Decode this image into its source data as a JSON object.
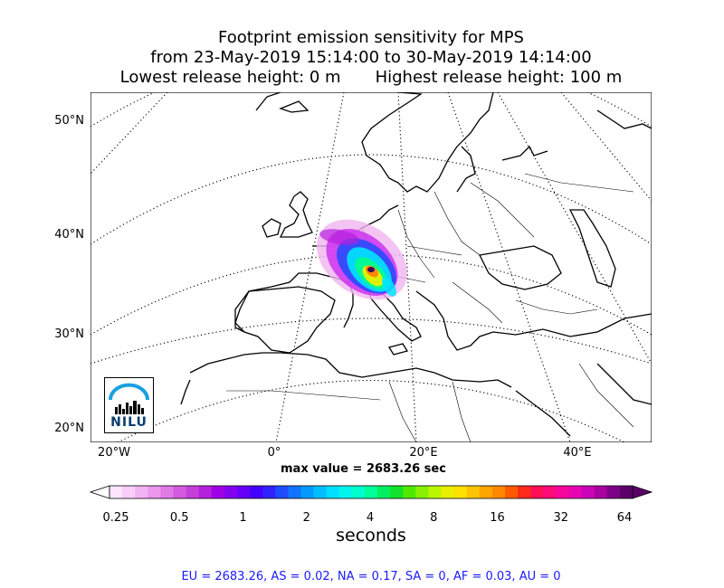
{
  "title": {
    "line1": "Footprint emission sensitivity for MPS",
    "line2": "from 23-May-2019 15:14:00 to 30-May-2019 14:14:00",
    "line3_left": "Lowest release height: 0 m",
    "line3_right": "Highest release height: 100 m"
  },
  "map": {
    "lat_labels": [
      "50°N",
      "40°N",
      "30°N",
      "20°N"
    ],
    "lon_labels": [
      "20°W",
      "0°",
      "20°E",
      "40°E"
    ],
    "max_value_text": "max value = 2683.26 sec",
    "logo_text": "NILU",
    "colors": {
      "coast": "#000000",
      "grid": "#000000",
      "footprint_core": "#3b0055"
    }
  },
  "colorbar": {
    "ticks": [
      "0.25",
      "0.5",
      "1",
      "2",
      "4",
      "8",
      "16",
      "32",
      "64"
    ],
    "label": "seconds",
    "colors": [
      "#fde6fd",
      "#f9cdf9",
      "#f3b2f3",
      "#eb97ee",
      "#e07ae6",
      "#d45bdf",
      "#c63fda",
      "#b520dc",
      "#a000e6",
      "#8400f0",
      "#6600f8",
      "#4400ff",
      "#2f22ff",
      "#1f4bff",
      "#1172ff",
      "#0499ff",
      "#00bfff",
      "#00dfff",
      "#00f5ef",
      "#00ffcc",
      "#00ff99",
      "#00f060",
      "#12e22a",
      "#50ea00",
      "#86f000",
      "#bcf500",
      "#e8f000",
      "#ffe100",
      "#ffc400",
      "#ffa500",
      "#ff8800",
      "#ff5a00",
      "#ff2a1a",
      "#ff0f55",
      "#ff0a7a",
      "#f7079c",
      "#e705b3",
      "#cc04b8",
      "#a8039e",
      "#7e0288",
      "#5a0068"
    ]
  },
  "footer": {
    "text": "EU = 2683.26,  AS = 0.02,  NA = 0.17,  SA = 0,  AF = 0.03,  AU = 0"
  }
}
